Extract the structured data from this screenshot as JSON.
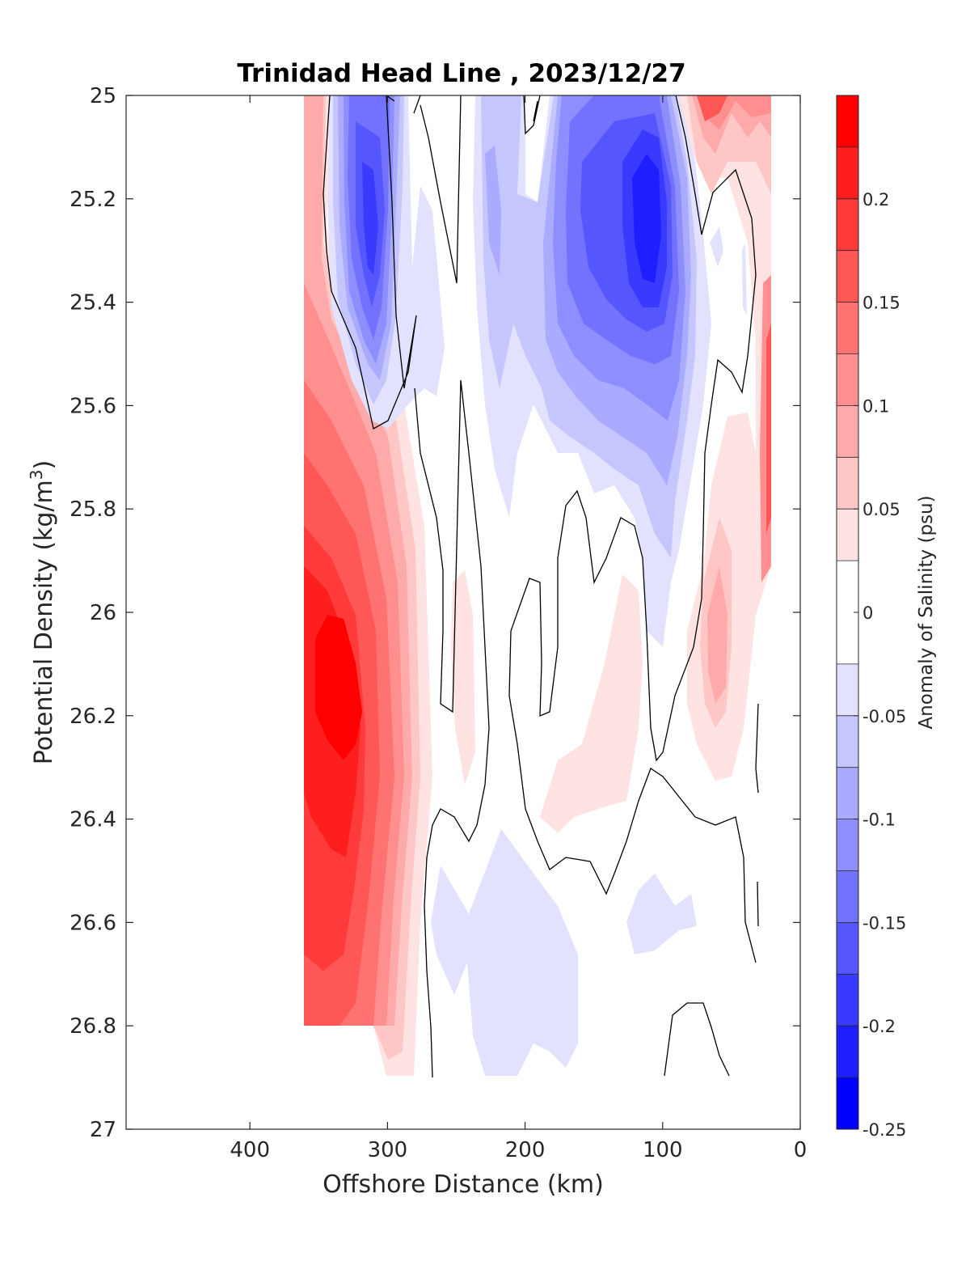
{
  "chart_data": {
    "type": "heatmap",
    "title": "Trinidad Head Line , 2023/12/27",
    "xlabel": "Offshore Distance (km)",
    "ylabel": "Potential Density (kg/m",
    "ylabel_sup": "3",
    "ylabel_close": ")",
    "xlim": [
      490,
      0
    ],
    "x_direction": "reversed",
    "ylim": [
      25,
      27
    ],
    "y_direction": "reversed",
    "x_ticks": [
      400,
      300,
      200,
      100,
      0
    ],
    "x_tick_labels": [
      "400",
      "300",
      "200",
      "100",
      "0"
    ],
    "y_ticks": [
      25,
      25.2,
      25.4,
      25.6,
      25.8,
      26,
      26.2,
      26.4,
      26.6,
      26.8,
      27
    ],
    "y_tick_labels": [
      "25",
      "25.2",
      "25.4",
      "25.6",
      "25.8",
      "26",
      "26.2",
      "26.4",
      "26.6",
      "26.8",
      "27"
    ],
    "colorbar": {
      "label": "Anomaly of Salinity (psu)",
      "range": [
        -0.25,
        0.25
      ],
      "ticks": [
        0.2,
        0.15,
        0.1,
        0.05,
        0,
        -0.05,
        -0.1,
        -0.15,
        -0.2,
        -0.25
      ],
      "tick_labels": [
        "0.2",
        "0.15",
        "0.1",
        "0.05",
        "0",
        "-0.05",
        "-0.1",
        "-0.15",
        "-0.2",
        "-0.25"
      ],
      "levels": [
        {
          "from": 0.225,
          "to": 0.25,
          "color": "#ff0000"
        },
        {
          "from": 0.2,
          "to": 0.225,
          "color": "#ff1e1e"
        },
        {
          "from": 0.175,
          "to": 0.2,
          "color": "#ff3a3a"
        },
        {
          "from": 0.15,
          "to": 0.175,
          "color": "#ff5656"
        },
        {
          "from": 0.125,
          "to": 0.15,
          "color": "#ff7272"
        },
        {
          "from": 0.1,
          "to": 0.125,
          "color": "#ff8e8e"
        },
        {
          "from": 0.075,
          "to": 0.1,
          "color": "#ffaaaa"
        },
        {
          "from": 0.05,
          "to": 0.075,
          "color": "#ffc6c6"
        },
        {
          "from": 0.025,
          "to": 0.05,
          "color": "#ffe2e2"
        },
        {
          "from": -0.025,
          "to": 0.025,
          "color": "#ffffff"
        },
        {
          "from": -0.05,
          "to": -0.025,
          "color": "#e2e2ff"
        },
        {
          "from": -0.075,
          "to": -0.05,
          "color": "#c6c6ff"
        },
        {
          "from": -0.1,
          "to": -0.075,
          "color": "#aaaaff"
        },
        {
          "from": -0.125,
          "to": -0.1,
          "color": "#8e8eff"
        },
        {
          "from": -0.15,
          "to": -0.125,
          "color": "#7272ff"
        },
        {
          "from": -0.175,
          "to": -0.15,
          "color": "#5656ff"
        },
        {
          "from": -0.2,
          "to": -0.175,
          "color": "#3a3aff"
        },
        {
          "from": -0.225,
          "to": -0.2,
          "color": "#1e1eff"
        },
        {
          "from": -0.25,
          "to": -0.225,
          "color": "#0000ff"
        }
      ]
    },
    "features": [
      {
        "name": "offshore salty core",
        "x": 335,
        "y": 26.15,
        "value": 0.24
      },
      {
        "name": "fresh core at 310 km",
        "x": 312,
        "y": 25.28,
        "value": -0.2
      },
      {
        "name": "fresh core at 110 km",
        "x": 108,
        "y": 25.27,
        "value": -0.22
      },
      {
        "name": "nearshore salty layer",
        "x": 70,
        "y": 25.02,
        "value": 0.16
      },
      {
        "name": "weak fresh region at depth",
        "x": 200,
        "y": 26.6,
        "value": -0.04
      }
    ],
    "grid": false,
    "legend": "colorbar-right"
  }
}
